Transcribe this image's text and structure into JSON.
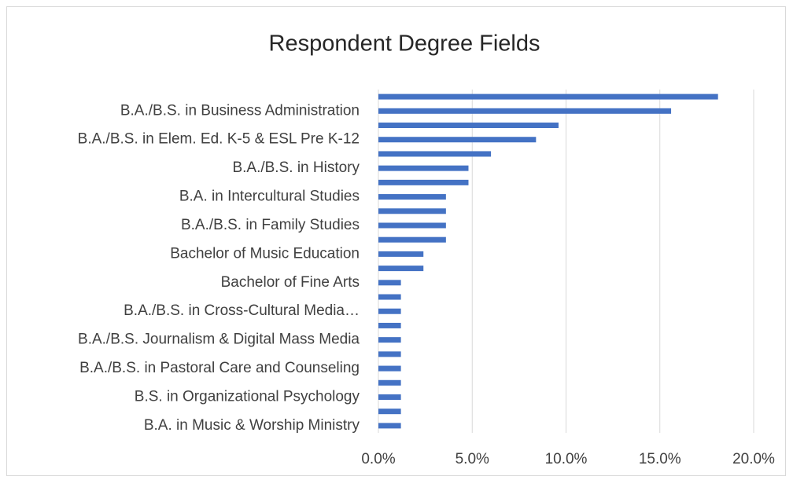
{
  "chart_data": {
    "type": "bar",
    "orientation": "horizontal",
    "title": "Respondent  Degree Fields",
    "categories": [
      "B.A. in Music & Worship Ministry",
      null,
      "B.S. in Organizational Psychology",
      null,
      "B.A./B.S. in Pastoral Care and Counseling",
      null,
      "B.A./B.S. Journalism & Digital Mass Media",
      null,
      "B.A./B.S. in Cross-Cultural Media…",
      null,
      "Bachelor of Fine Arts",
      null,
      "Bachelor of Music Education",
      null,
      "B.A./B.S. in Family Studies",
      null,
      "B.A. in Intercultural Studies",
      null,
      "B.A./B.S. in History",
      null,
      "B.A./B.S. in Elem. Ed. K-5 & ESL Pre K-12",
      null,
      "B.A./B.S. in Business Administration",
      null
    ],
    "values": [
      1.2,
      1.2,
      1.2,
      1.2,
      1.2,
      1.2,
      1.2,
      1.2,
      1.2,
      1.2,
      1.2,
      2.4,
      2.4,
      3.6,
      3.6,
      3.6,
      3.6,
      4.8,
      4.8,
      6.0,
      8.4,
      9.6,
      15.6,
      18.1
    ],
    "color": "#4472c4",
    "xlim": [
      0,
      20
    ],
    "xticks": [
      {
        "value": 0,
        "label": "0.0%"
      },
      {
        "value": 5,
        "label": "5.0%"
      },
      {
        "value": 10,
        "label": "10.0%"
      },
      {
        "value": 15,
        "label": "15.0%"
      },
      {
        "value": 20,
        "label": "20.0%"
      }
    ],
    "grid": true
  }
}
